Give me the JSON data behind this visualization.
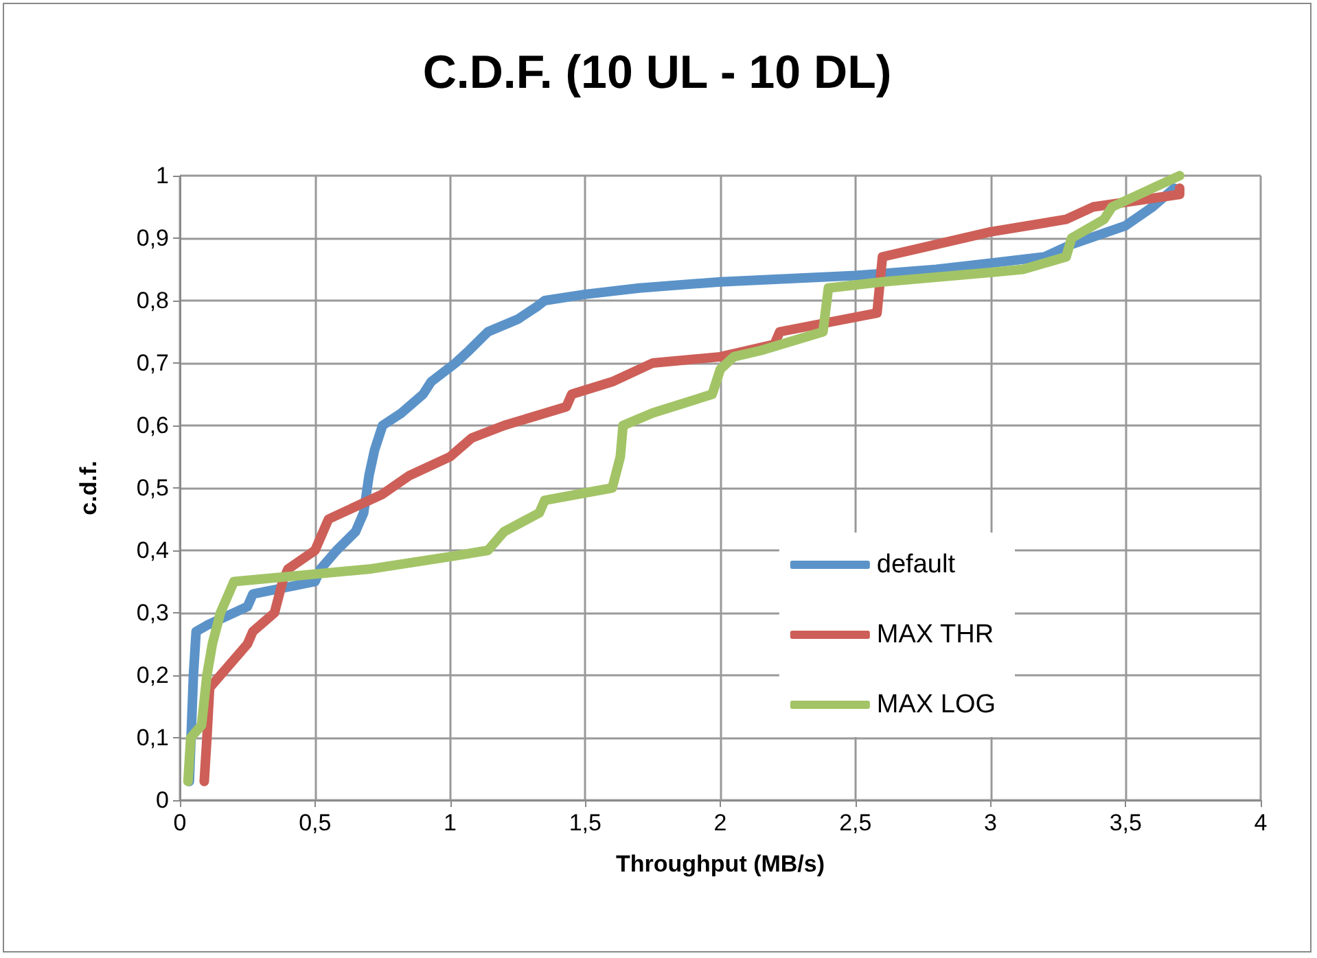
{
  "chart_data": {
    "type": "line",
    "title": "C.D.F. (10 UL - 10 DL)",
    "xlabel": "Throughput (MB/s)",
    "ylabel": "c.d.f.",
    "xlim": [
      0,
      4
    ],
    "ylim": [
      0,
      1
    ],
    "xticks": [
      0,
      {
        "value": 0.5,
        "label": "0,5"
      },
      1,
      {
        "value": 1.5,
        "label": "1,5"
      },
      2,
      {
        "value": 2.5,
        "label": "2,5"
      },
      3,
      {
        "value": 3.5,
        "label": "3,5"
      },
      4
    ],
    "yticks": [
      0,
      {
        "value": 0.1,
        "label": "0,1"
      },
      {
        "value": 0.2,
        "label": "0,2"
      },
      {
        "value": 0.3,
        "label": "0,3"
      },
      {
        "value": 0.4,
        "label": "0,4"
      },
      {
        "value": 0.5,
        "label": "0,5"
      },
      {
        "value": 0.6,
        "label": "0,6"
      },
      {
        "value": 0.7,
        "label": "0,7"
      },
      {
        "value": 0.8,
        "label": "0,8"
      },
      {
        "value": 0.9,
        "label": "0,9"
      },
      1
    ],
    "grid": true,
    "legend": "right",
    "marker": "none",
    "line_style": "solid",
    "series": [
      {
        "name": "default",
        "color": "#5b93c9",
        "x": [
          0.035,
          0.05,
          0.06,
          0.1,
          0.25,
          0.27,
          0.5,
          0.52,
          0.58,
          0.65,
          0.68,
          0.7,
          0.72,
          0.75,
          0.82,
          0.9,
          0.93,
          1.02,
          1.07,
          1.14,
          1.25,
          1.32,
          1.35,
          1.5,
          1.7,
          2.0,
          2.5,
          2.8,
          3.0,
          3.2,
          3.3,
          3.5,
          3.6,
          3.68
        ],
        "values": [
          0.03,
          0.2,
          0.27,
          0.28,
          0.31,
          0.33,
          0.35,
          0.37,
          0.4,
          0.43,
          0.46,
          0.52,
          0.56,
          0.6,
          0.62,
          0.65,
          0.67,
          0.7,
          0.72,
          0.75,
          0.77,
          0.79,
          0.8,
          0.81,
          0.82,
          0.83,
          0.84,
          0.85,
          0.86,
          0.87,
          0.89,
          0.92,
          0.95,
          0.98
        ]
      },
      {
        "name": "MAX THR",
        "color": "#cd5f58",
        "x": [
          0.09,
          0.1,
          0.11,
          0.15,
          0.25,
          0.27,
          0.35,
          0.38,
          0.4,
          0.5,
          0.52,
          0.55,
          0.75,
          0.85,
          1.0,
          1.08,
          1.2,
          1.43,
          1.45,
          1.6,
          1.75,
          2.0,
          2.2,
          2.22,
          2.58,
          2.6,
          2.8,
          3.0,
          3.28,
          3.38,
          3.7,
          3.7
        ],
        "values": [
          0.03,
          0.1,
          0.18,
          0.2,
          0.25,
          0.27,
          0.3,
          0.35,
          0.37,
          0.4,
          0.42,
          0.45,
          0.49,
          0.52,
          0.55,
          0.58,
          0.6,
          0.63,
          0.65,
          0.67,
          0.7,
          0.71,
          0.73,
          0.75,
          0.78,
          0.87,
          0.89,
          0.91,
          0.93,
          0.95,
          0.97,
          0.98
        ]
      },
      {
        "name": "MAX LOG",
        "color": "#a3c466",
        "x": [
          0.03,
          0.04,
          0.08,
          0.1,
          0.12,
          0.15,
          0.2,
          0.7,
          1.0,
          1.14,
          1.2,
          1.33,
          1.35,
          1.6,
          1.63,
          1.64,
          1.75,
          1.97,
          2.0,
          2.05,
          2.15,
          2.38,
          2.4,
          2.6,
          3.0,
          3.12,
          3.28,
          3.3,
          3.42,
          3.45,
          3.7
        ],
        "values": [
          0.03,
          0.1,
          0.12,
          0.2,
          0.25,
          0.3,
          0.35,
          0.37,
          0.39,
          0.4,
          0.43,
          0.46,
          0.48,
          0.5,
          0.55,
          0.6,
          0.62,
          0.65,
          0.69,
          0.71,
          0.72,
          0.75,
          0.82,
          0.83,
          0.845,
          0.85,
          0.87,
          0.9,
          0.93,
          0.95,
          1.0
        ]
      }
    ]
  }
}
